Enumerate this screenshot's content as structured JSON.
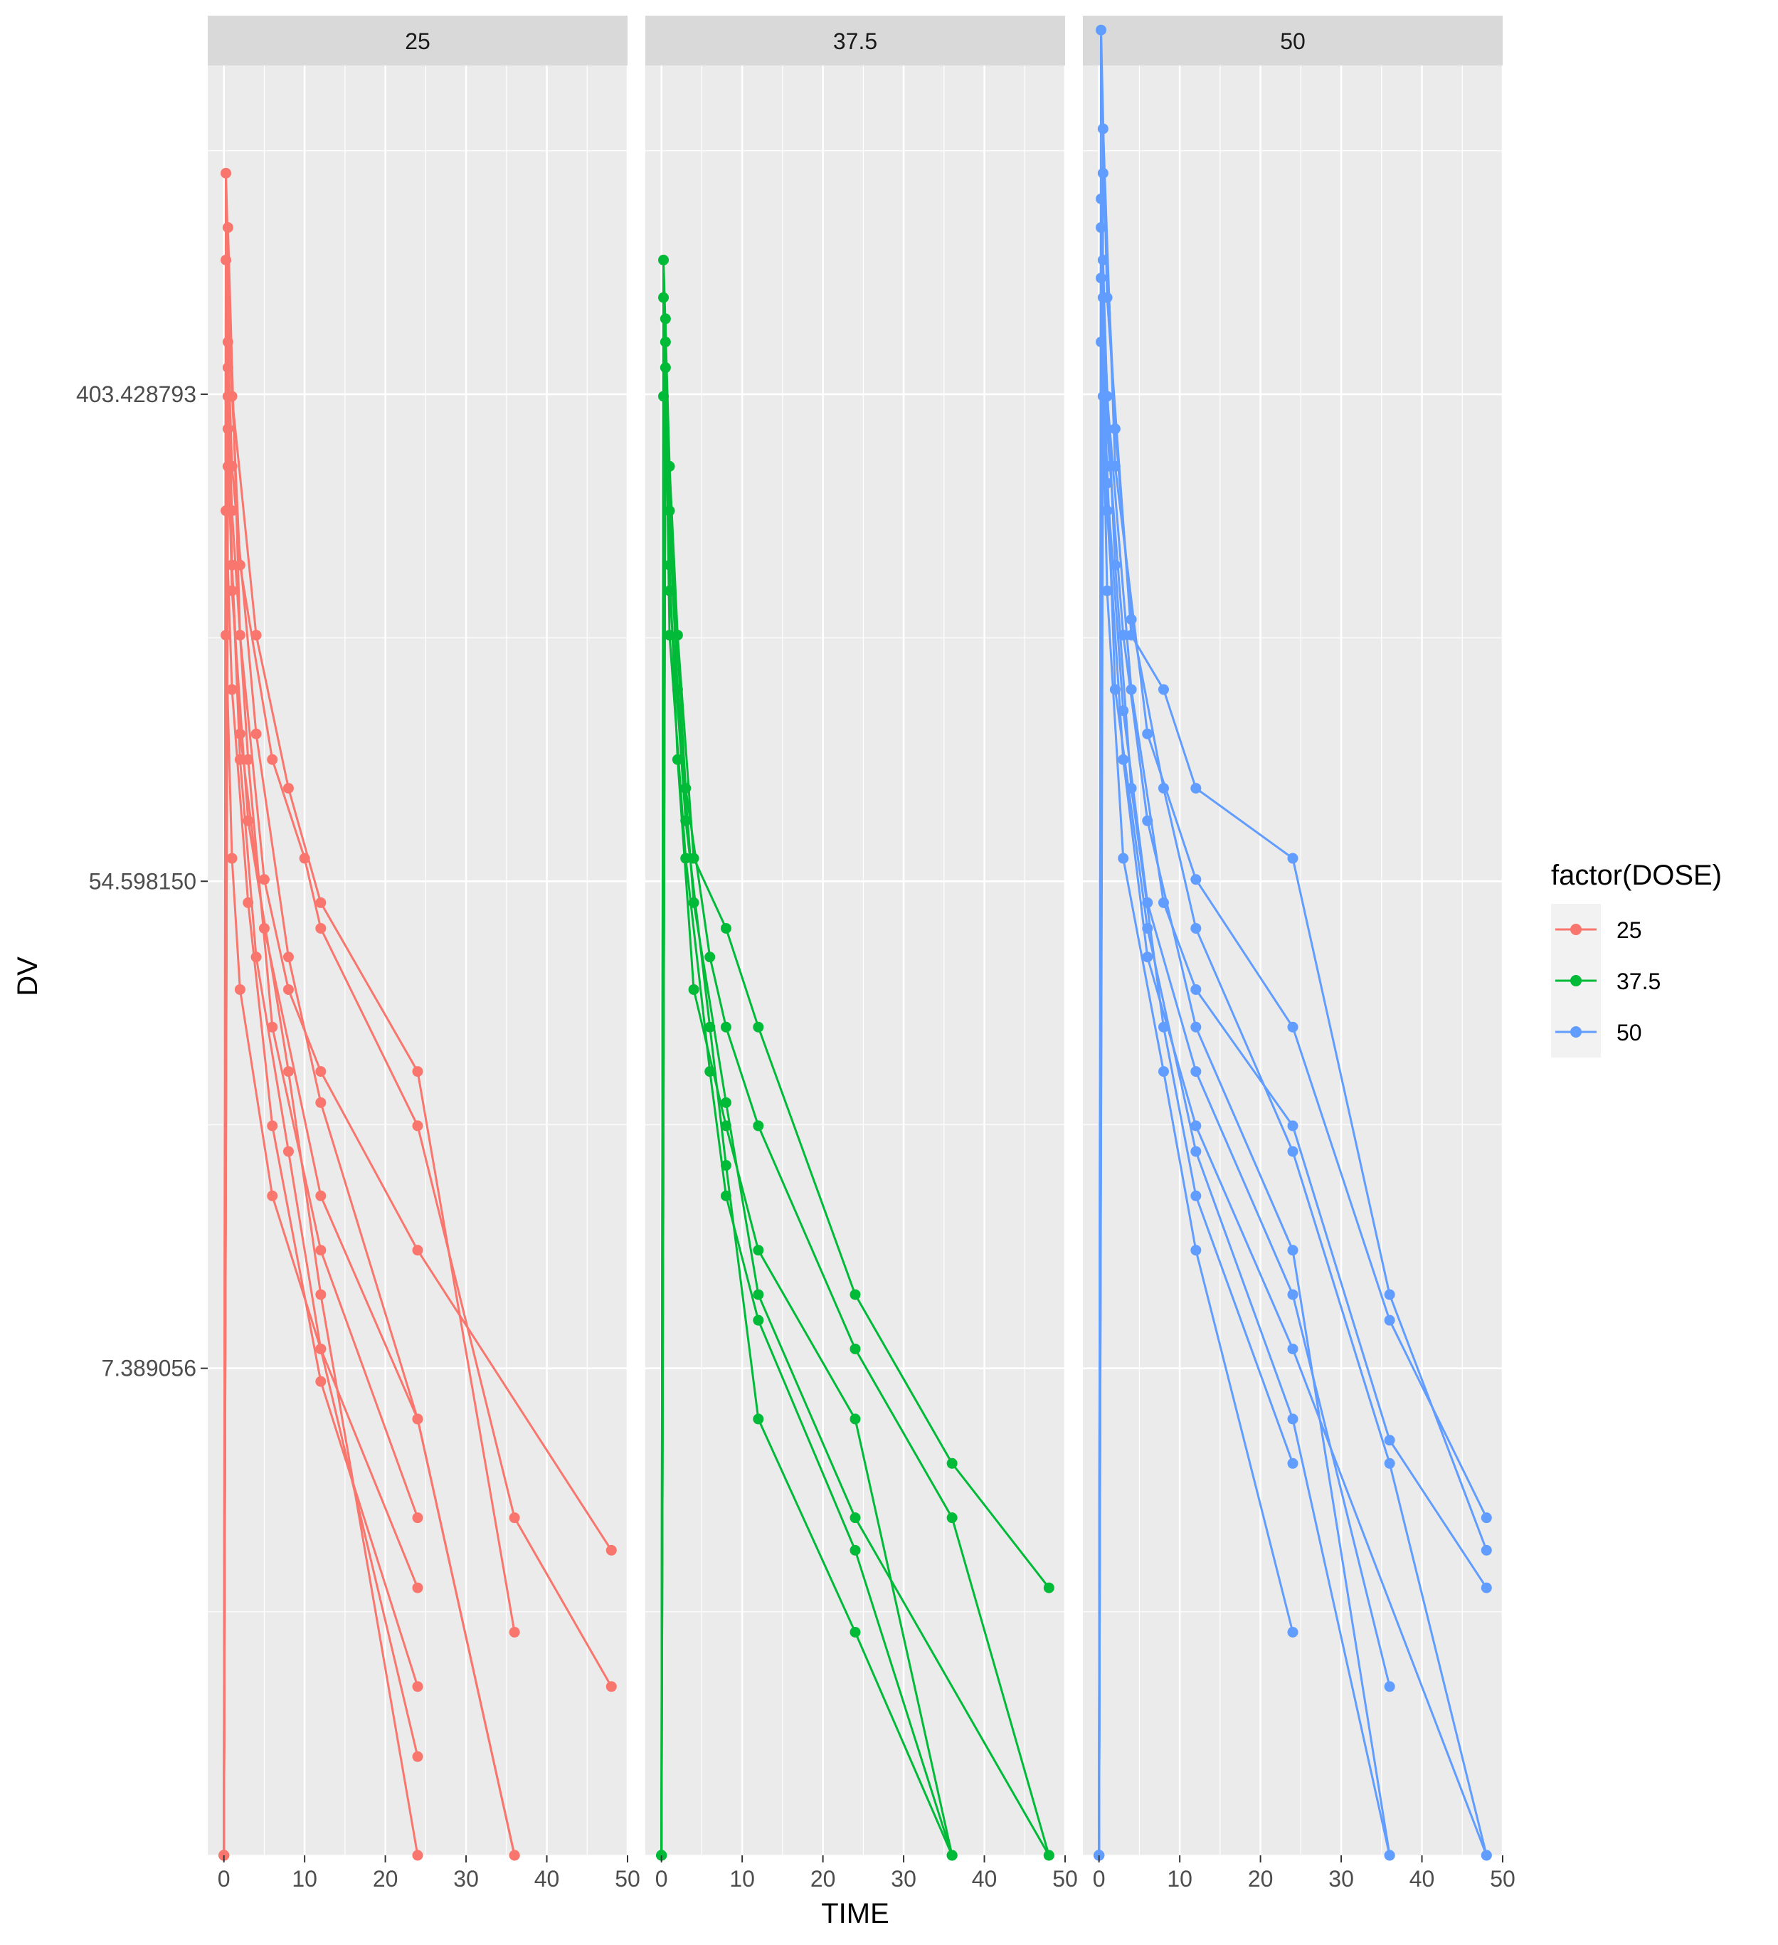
{
  "chart_data": {
    "type": "line",
    "facet_variable": "DOSE",
    "panels": [
      "25",
      "37.5",
      "50"
    ],
    "xlabel": "TIME",
    "ylabel": "DV",
    "x_ticks": [
      "0",
      "10",
      "20",
      "30",
      "40",
      "50"
    ],
    "y_tick_labels": [
      "403.428793",
      "54.598150",
      "7.389056"
    ],
    "y_scale": "log",
    "xlim": [
      -2,
      50
    ],
    "ylim_log": [
      0.0,
      7.35
    ],
    "grid": true,
    "legend": {
      "title": "factor(DOSE)",
      "position": "right",
      "entries": [
        "25",
        "37.5",
        "50"
      ]
    },
    "colors": {
      "25": "#F8766D",
      "37.5": "#00BA38",
      "50": "#619CFF"
    },
    "panel_background": "#EBEBEB",
    "strip_background": "#D9D9D9",
    "series": [
      {
        "panel": "25",
        "name": "25",
        "time": [
          0,
          0.25,
          1,
          4,
          8,
          12,
          24,
          36
        ],
        "dv": [
          1.0,
          1000,
          400,
          150,
          80,
          50,
          25,
          2.5
        ]
      },
      {
        "panel": "25",
        "name": "25",
        "time": [
          0,
          0.25,
          2,
          6,
          10,
          12,
          24,
          36,
          48
        ],
        "dv": [
          1.0,
          700,
          200,
          90,
          60,
          45,
          20,
          4.0,
          2.0
        ]
      },
      {
        "panel": "25",
        "name": "25",
        "time": [
          0,
          0.5,
          2,
          5,
          8,
          12,
          24,
          48
        ],
        "dv": [
          1.0,
          800,
          150,
          55,
          35,
          25,
          12,
          3.5
        ]
      },
      {
        "panel": "25",
        "name": "25",
        "time": [
          0,
          0.5,
          1,
          4,
          8,
          12,
          24,
          36
        ],
        "dv": [
          1.0,
          500,
          300,
          100,
          40,
          22,
          6.0,
          1.0
        ]
      },
      {
        "panel": "25",
        "name": "25",
        "time": [
          0,
          0.5,
          1,
          3,
          6,
          12,
          24
        ],
        "dv": [
          1.0,
          400,
          250,
          90,
          30,
          12,
          4.0
        ]
      },
      {
        "panel": "25",
        "name": "25",
        "time": [
          0,
          0.25,
          1,
          3,
          6,
          12,
          24
        ],
        "dv": [
          1.0,
          250,
          120,
          50,
          20,
          7.0,
          2.0
        ]
      },
      {
        "panel": "25",
        "name": "25",
        "time": [
          0,
          0.5,
          2,
          4,
          8,
          12,
          24
        ],
        "dv": [
          1.0,
          300,
          90,
          40,
          18,
          8.0,
          1.5
        ]
      },
      {
        "panel": "25",
        "name": "25",
        "time": [
          0,
          0.5,
          1,
          2,
          5,
          12,
          24,
          36
        ],
        "dv": [
          1.0,
          450,
          200,
          100,
          45,
          15,
          6.0,
          1.0
        ]
      },
      {
        "panel": "25",
        "name": "25",
        "time": [
          0,
          0.25,
          1,
          2,
          6,
          12,
          24
        ],
        "dv": [
          1.0,
          150,
          60,
          35,
          15,
          8.0,
          3.0
        ]
      },
      {
        "panel": "25",
        "name": "25",
        "time": [
          0,
          0.5,
          1,
          3,
          8,
          12,
          24
        ],
        "dv": [
          1.0,
          350,
          180,
          70,
          25,
          10,
          1.0
        ]
      },
      {
        "panel": "37.5",
        "name": "37.5",
        "time": [
          0,
          0.25,
          1,
          2,
          4,
          8,
          12,
          24,
          36,
          48
        ],
        "dv": [
          1.0,
          700,
          300,
          150,
          60,
          45,
          30,
          10,
          5.0,
          3.0
        ]
      },
      {
        "panel": "37.5",
        "name": "37.5",
        "time": [
          0,
          0.25,
          1,
          3,
          6,
          8,
          12,
          24,
          36,
          48
        ],
        "dv": [
          1.0,
          600,
          250,
          80,
          40,
          30,
          20,
          8.0,
          4.0,
          1.0
        ]
      },
      {
        "panel": "37.5",
        "name": "37.5",
        "time": [
          0,
          0.5,
          1,
          2,
          4,
          8,
          12,
          24,
          36
        ],
        "dv": [
          1.0,
          500,
          200,
          90,
          35,
          20,
          12,
          6.0,
          1.0
        ]
      },
      {
        "panel": "37.5",
        "name": "37.5",
        "time": [
          0,
          0.5,
          1,
          3,
          6,
          8,
          12,
          24,
          36
        ],
        "dv": [
          1.0,
          450,
          150,
          60,
          25,
          15,
          9.0,
          3.5,
          1.0
        ]
      },
      {
        "panel": "37.5",
        "name": "37.5",
        "time": [
          0,
          0.25,
          2,
          4,
          8,
          12,
          24,
          48
        ],
        "dv": [
          1.0,
          400,
          120,
          50,
          22,
          10,
          4.0,
          1.0
        ]
      },
      {
        "panel": "37.5",
        "name": "37.5",
        "time": [
          0,
          0.5,
          1,
          3,
          6,
          8,
          12,
          24,
          36
        ],
        "dv": [
          1.0,
          550,
          180,
          70,
          30,
          17,
          6.0,
          2.5,
          1.0
        ]
      },
      {
        "panel": "50",
        "name": "50",
        "time": [
          0,
          0.25,
          1,
          4,
          8,
          12,
          24,
          36,
          48
        ],
        "dv": [
          1.0,
          1800,
          600,
          150,
          120,
          80,
          60,
          10,
          3.5
        ]
      },
      {
        "panel": "50",
        "name": "50",
        "time": [
          0,
          0.5,
          2,
          6,
          12,
          24,
          36,
          48
        ],
        "dv": [
          1.0,
          1200,
          300,
          100,
          55,
          30,
          9.0,
          4.0
        ]
      },
      {
        "panel": "50",
        "name": "50",
        "time": [
          0,
          0.25,
          1,
          4,
          8,
          12,
          24,
          36,
          48
        ],
        "dv": [
          1.0,
          900,
          400,
          120,
          50,
          35,
          20,
          5.5,
          3.0
        ]
      },
      {
        "panel": "50",
        "name": "50",
        "time": [
          0,
          0.5,
          1,
          3,
          6,
          12,
          24,
          36
        ],
        "dv": [
          1.0,
          700,
          350,
          150,
          70,
          30,
          12,
          1.0
        ]
      },
      {
        "panel": "50",
        "name": "50",
        "time": [
          0,
          0.25,
          1,
          3,
          6,
          12,
          24,
          48
        ],
        "dv": [
          1.0,
          800,
          250,
          90,
          40,
          20,
          8.0,
          1.0
        ]
      },
      {
        "panel": "50",
        "name": "50",
        "time": [
          0,
          0.5,
          2,
          4,
          8,
          12,
          24
        ],
        "dv": [
          1.0,
          600,
          200,
          80,
          30,
          15,
          5.0
        ]
      },
      {
        "panel": "50",
        "name": "50",
        "time": [
          0,
          0.25,
          1,
          2,
          6,
          12,
          24,
          36
        ],
        "dv": [
          1.0,
          500,
          300,
          120,
          45,
          18,
          6.0,
          1.0
        ]
      },
      {
        "panel": "50",
        "name": "50",
        "time": [
          0,
          0.5,
          1,
          3,
          8,
          12,
          24
        ],
        "dv": [
          1.0,
          400,
          180,
          60,
          25,
          12,
          2.5
        ]
      },
      {
        "panel": "50",
        "name": "50",
        "time": [
          0,
          0.5,
          2,
          4,
          8,
          12,
          24,
          36,
          48
        ],
        "dv": [
          1.0,
          1000,
          350,
          160,
          80,
          45,
          18,
          5.0,
          1.0
        ]
      },
      {
        "panel": "50",
        "name": "50",
        "time": [
          0,
          0.25,
          1,
          3,
          6,
          12,
          24,
          36
        ],
        "dv": [
          1.0,
          650,
          280,
          110,
          50,
          25,
          10,
          2.0
        ]
      }
    ]
  }
}
